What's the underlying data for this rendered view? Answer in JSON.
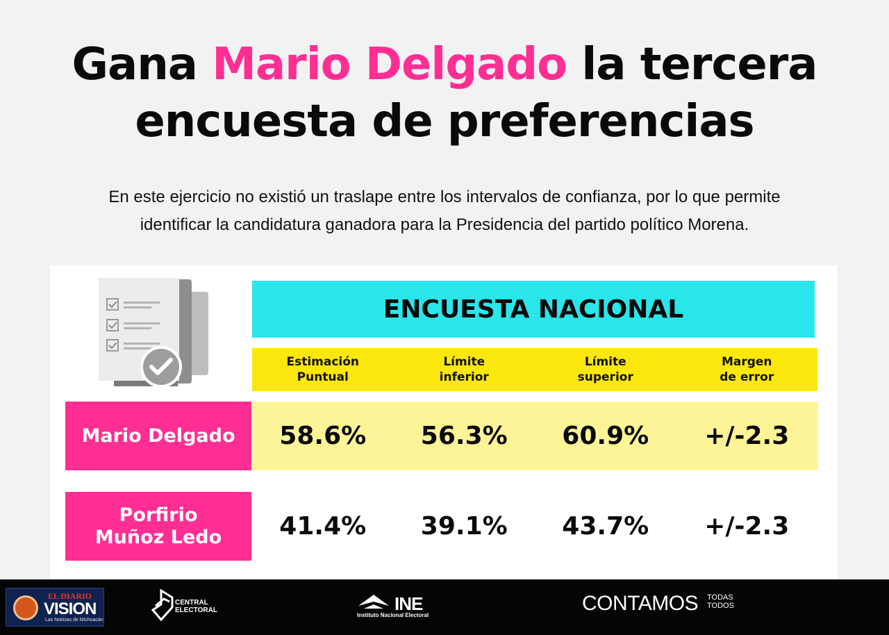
{
  "title": {
    "part1": "Gana ",
    "highlight": "Mario Delgado",
    "part2": " la tercera",
    "line2": "encuesta de preferencias"
  },
  "subtitle": {
    "line1": "En este ejercicio no existió un traslape entre los intervalos de confianza, por lo que permite",
    "line2": "identificar la candidatura ganadora para la Presidencia del partido político Morena."
  },
  "table": {
    "header": "ENCUESTA NACIONAL",
    "columns": [
      "Estimación\nPuntual",
      "Límite\ninferior",
      "Límite\nsuperior",
      "Margen\nde error"
    ],
    "rows": [
      {
        "name": "Mario Delgado",
        "values": [
          "58.6%",
          "56.3%",
          "60.9%",
          "+/-2.3"
        ]
      },
      {
        "name": "Porfirio\nMuñoz Ledo",
        "values": [
          "41.4%",
          "39.1%",
          "43.7%",
          "+/-2.3"
        ]
      }
    ]
  },
  "footer": {
    "vision": {
      "top": "EL DIARIO",
      "main": "VISION",
      "tagline": "Las Noticias de Michoacán"
    },
    "central": "CENTRAL\nELECTORAL",
    "ine": {
      "mark": "INE",
      "sub": "Instituto Nacional Electoral"
    },
    "contamos": {
      "main": "CONTAMOS",
      "side": "TODAS\nTODOS"
    }
  },
  "colors": {
    "accent_pink": "#ff2e93",
    "header_cyan": "#29e6ea",
    "column_yellow": "#fbe70b",
    "row_yellow": "#fdf497",
    "footer_black": "#050505"
  },
  "icons": [
    "checklist-document-icon",
    "checkmark-badge-icon",
    "ballot-box-icon",
    "ine-eagle-icon"
  ]
}
